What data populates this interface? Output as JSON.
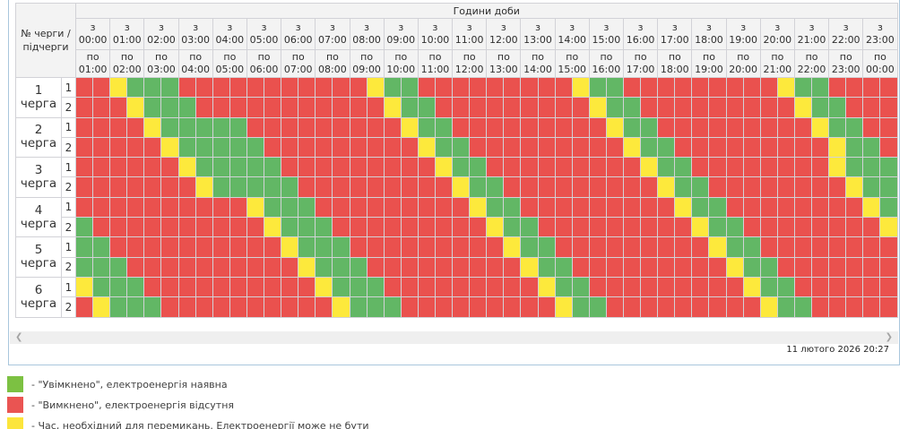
{
  "header": {
    "corner": "№ черги / підчерги",
    "hours_title": "Години доби",
    "from_prefix": "з",
    "to_prefix": "по",
    "hours": [
      {
        "from": "00:00",
        "to": "01:00"
      },
      {
        "from": "01:00",
        "to": "02:00"
      },
      {
        "from": "02:00",
        "to": "03:00"
      },
      {
        "from": "03:00",
        "to": "04:00"
      },
      {
        "from": "04:00",
        "to": "05:00"
      },
      {
        "from": "05:00",
        "to": "06:00"
      },
      {
        "from": "06:00",
        "to": "07:00"
      },
      {
        "from": "07:00",
        "to": "08:00"
      },
      {
        "from": "08:00",
        "to": "09:00"
      },
      {
        "from": "09:00",
        "to": "10:00"
      },
      {
        "from": "10:00",
        "to": "11:00"
      },
      {
        "from": "11:00",
        "to": "12:00"
      },
      {
        "from": "12:00",
        "to": "13:00"
      },
      {
        "from": "13:00",
        "to": "14:00"
      },
      {
        "from": "14:00",
        "to": "15:00"
      },
      {
        "from": "15:00",
        "to": "16:00"
      },
      {
        "from": "16:00",
        "to": "17:00"
      },
      {
        "from": "17:00",
        "to": "18:00"
      },
      {
        "from": "18:00",
        "to": "19:00"
      },
      {
        "from": "19:00",
        "to": "20:00"
      },
      {
        "from": "20:00",
        "to": "21:00"
      },
      {
        "from": "21:00",
        "to": "22:00"
      },
      {
        "from": "22:00",
        "to": "23:00"
      },
      {
        "from": "23:00",
        "to": "00:00"
      }
    ]
  },
  "cell_colors": {
    "G": "#62B765",
    "R": "#EA514E",
    "Y": "#FDE93C"
  },
  "cell_meanings": {
    "G": "power-on",
    "R": "power-off",
    "Y": "switching"
  },
  "queues": [
    {
      "number": "1",
      "word": "черга",
      "subqueues": [
        {
          "label": "1",
          "cells": "RRYGGGRRRRRRRRRRRYGGRRRRRRRRRYGGRRRRRRRRRYGGRRRR"
        },
        {
          "label": "2",
          "cells": "RRRYGGGRRRRRRRRRRRYGGRRRRRRRRRYGGRRRRRRRRRYGGRRR"
        }
      ]
    },
    {
      "number": "2",
      "word": "черга",
      "subqueues": [
        {
          "label": "1",
          "cells": "RRRRYGGGGGRRRRRRRRRYGGRRRRRRRRRYGGRRRRRRRRRYGGRR"
        },
        {
          "label": "2",
          "cells": "RRRRRYGGGGGRRRRRRRRRYGGRRRRRRRRRYGGRRRRRRRRRYGGR"
        }
      ]
    },
    {
      "number": "3",
      "word": "черга",
      "subqueues": [
        {
          "label": "1",
          "cells": "RRRRRRYGGGGGRRRRRRRRRYGGRRRRRRRRRYGGRRRRRRRRYGGG"
        },
        {
          "label": "2",
          "cells": "RRRRRRRYGGGGGRRRRRRRRRYGGRRRRRRRRRYGGRRRRRRRRYGG"
        }
      ]
    },
    {
      "number": "4",
      "word": "черга",
      "subqueues": [
        {
          "label": "1",
          "cells": "RRRRRRRRRRYGGGRRRRRRRRRYGGRRRRRRRRRYGGRRRRRRRRYG"
        },
        {
          "label": "2",
          "cells": "GRRRRRRRRRRYGGGRRRRRRRRRYGGRRRRRRRRRYGGRRRRRRRRY"
        }
      ]
    },
    {
      "number": "5",
      "word": "черга",
      "subqueues": [
        {
          "label": "1",
          "cells": "GGRRRRRRRRRRYGGGRRRRRRRRRYGGRRRRRRRRRYGGRRRRRRRR"
        },
        {
          "label": "2",
          "cells": "GGGRRRRRRRRRRYGGGRRRRRRRRRYGGRRRRRRRRRYGGRRRRRRR"
        }
      ]
    },
    {
      "number": "6",
      "word": "черга",
      "subqueues": [
        {
          "label": "1",
          "cells": "YGGGRRRRRRRRRRYGGGRRRRRRRRRYGGRRRRRRRRRYGGRRRRRR"
        },
        {
          "label": "2",
          "cells": "RYGGGRRRRRRRRRRYGGGRRRRRRRRRYGGRRRRRRRRRYGGRRRRR"
        }
      ]
    }
  ],
  "scrollbar": {
    "left_arrow": "❮",
    "right_arrow": "❯"
  },
  "footer": {
    "timestamp": "11 лютого 2026 20:27"
  },
  "legend": {
    "items": [
      {
        "key": "on",
        "color": "#7CC142",
        "text": "- \"Увімкнено\", електроенергія наявна"
      },
      {
        "key": "off",
        "color": "#EA5452",
        "text": "- \"Вимкнено\", електроенергія відсутня"
      },
      {
        "key": "switching",
        "color": "#FCE53B",
        "text": "- Час, необхідний для перемикань. Електроенергії може не бути"
      }
    ]
  }
}
